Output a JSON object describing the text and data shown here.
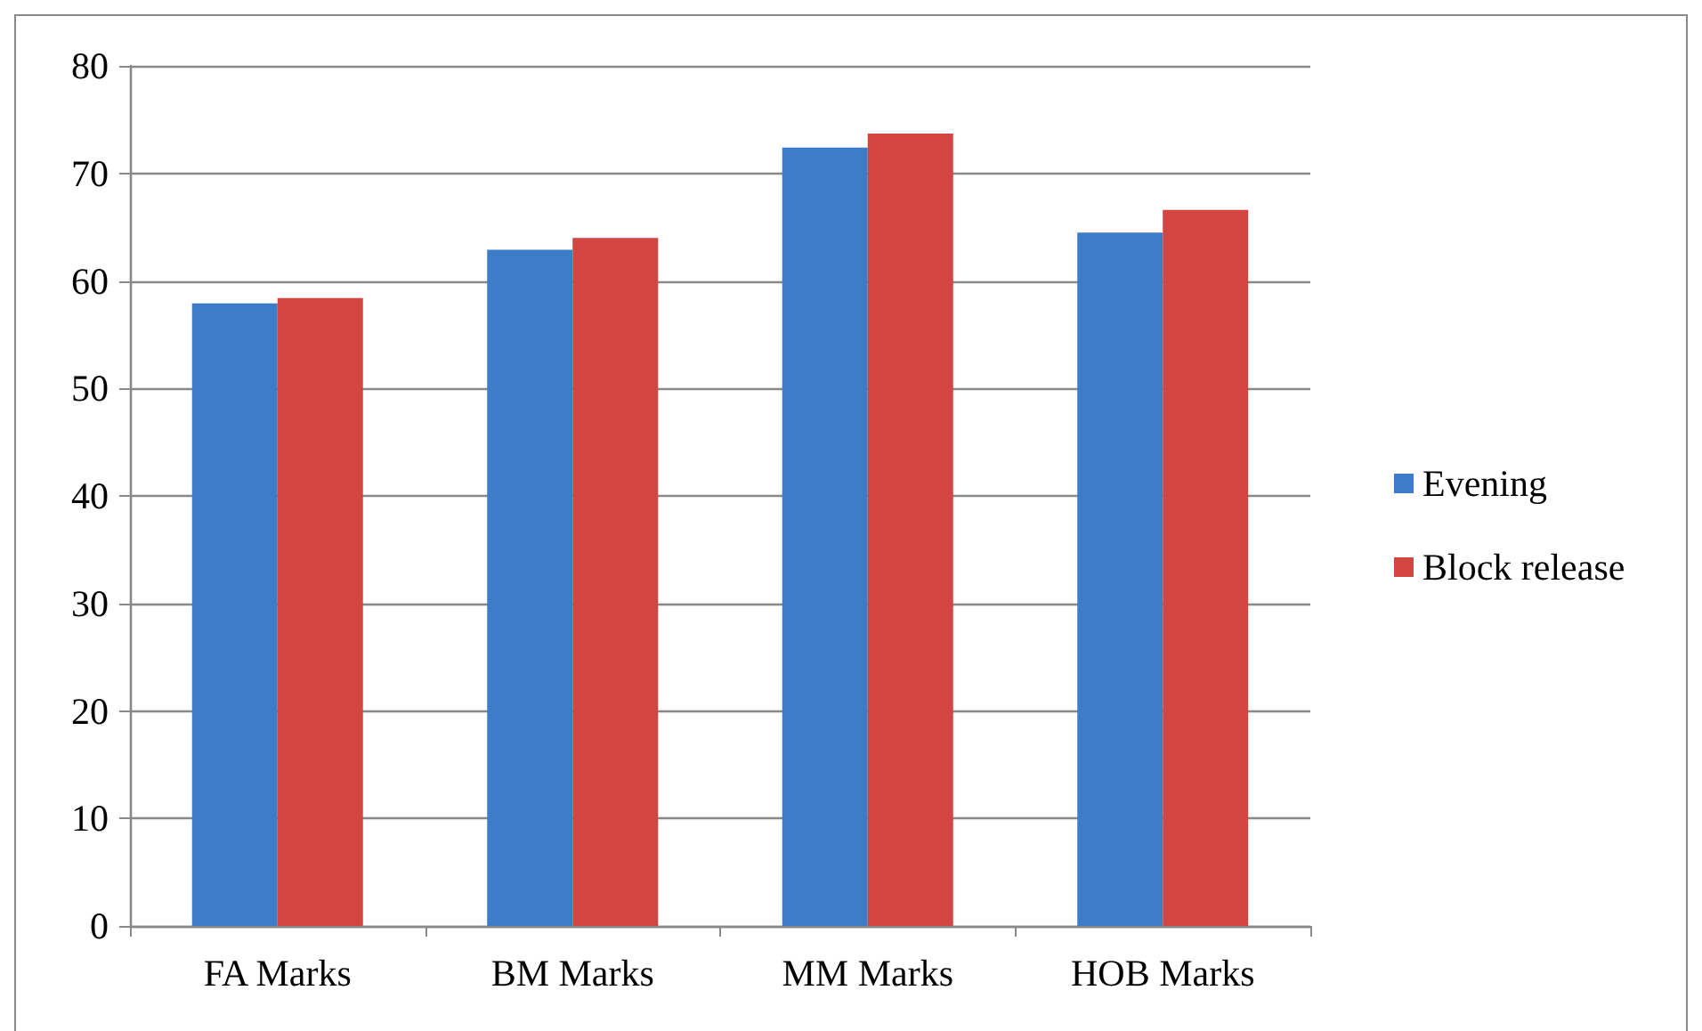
{
  "chart_data": {
    "type": "bar",
    "categories": [
      "FA Marks",
      "BM Marks",
      "MM Marks",
      "HOB Marks"
    ],
    "series": [
      {
        "name": "Evening",
        "color": "#3d7cc9",
        "values": [
          57.9,
          62.9,
          72.4,
          64.5
        ]
      },
      {
        "name": "Block release",
        "color": "#d24541",
        "values": [
          58.4,
          64.0,
          73.7,
          66.6
        ]
      }
    ],
    "ylim": [
      0,
      80
    ],
    "yticks": [
      0,
      10,
      20,
      30,
      40,
      50,
      60,
      70,
      80
    ],
    "grid": "y",
    "legend": "right"
  }
}
